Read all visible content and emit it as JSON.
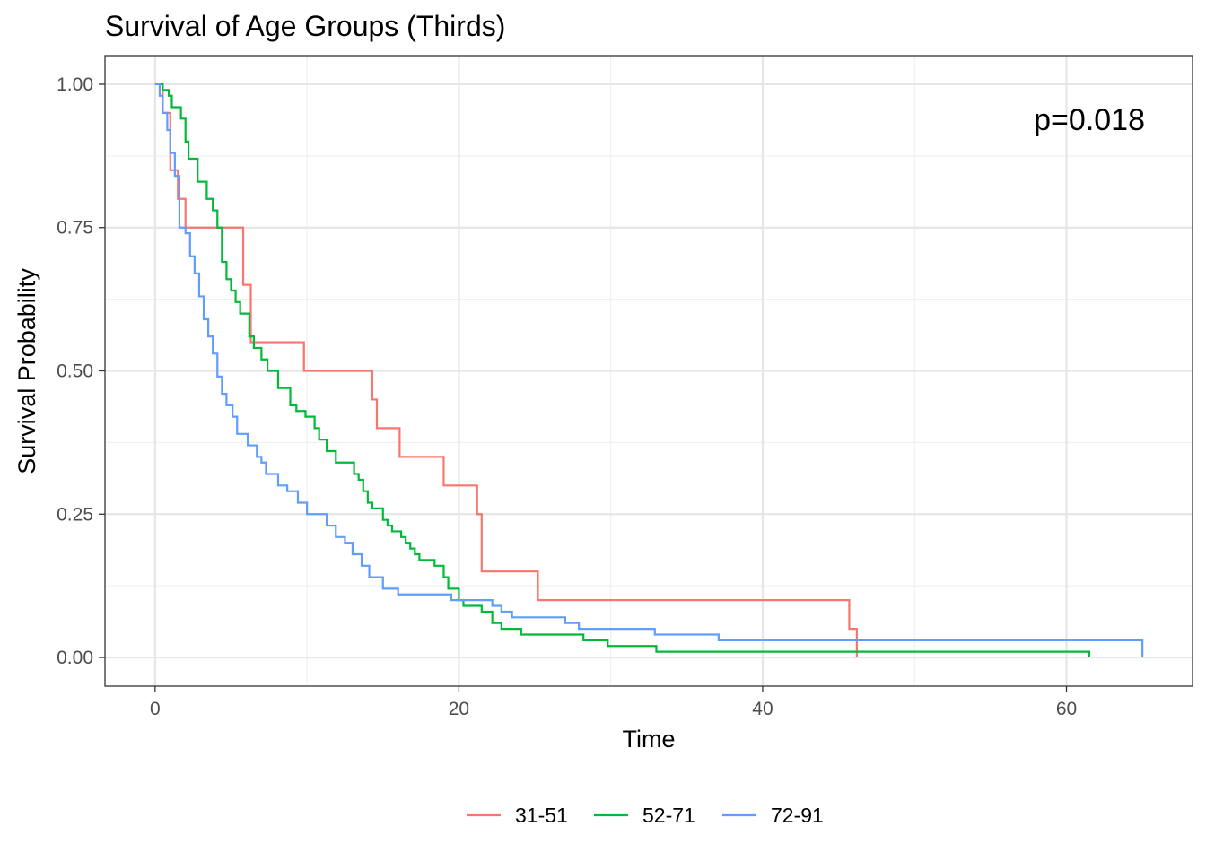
{
  "chart_data": {
    "type": "line",
    "subtype": "kaplan-meier-step",
    "title": "Survival of Age Groups (Thirds)",
    "xlabel": "Time",
    "ylabel": "Survival Probability",
    "xlim": [
      -3.3,
      68.3
    ],
    "ylim": [
      -0.05,
      1.05
    ],
    "x_ticks": [
      0,
      20,
      40,
      60
    ],
    "y_ticks": [
      0,
      0.25,
      0.5,
      0.75,
      1.0
    ],
    "x_tick_labels": [
      "0",
      "20",
      "40",
      "60"
    ],
    "y_tick_labels": [
      "0.00",
      "0.25",
      "0.50",
      "0.75",
      "1.00"
    ],
    "grid": true,
    "legend_position": "bottom",
    "annotation": "p=0.018",
    "series": [
      {
        "name": "31-51",
        "color": "#F8766D",
        "x": [
          0,
          0.5,
          1.0,
          1.5,
          2.0,
          5.8,
          6.3,
          9.8,
          14.3,
          14.6,
          16.1,
          19.0,
          21.2,
          21.5,
          25.2,
          45.7,
          46.2
        ],
        "y": [
          1.0,
          0.95,
          0.85,
          0.8,
          0.75,
          0.65,
          0.55,
          0.5,
          0.45,
          0.4,
          0.35,
          0.3,
          0.25,
          0.15,
          0.1,
          0.05,
          0.0
        ]
      },
      {
        "name": "52-71",
        "color": "#00BA38",
        "x": [
          0,
          0.5,
          0.9,
          1.1,
          1.7,
          2.0,
          2.2,
          2.8,
          3.4,
          3.8,
          4.1,
          4.4,
          4.7,
          5.0,
          5.3,
          5.6,
          6.2,
          6.5,
          7.0,
          7.4,
          8.1,
          8.9,
          9.3,
          9.9,
          10.5,
          10.8,
          11.3,
          11.9,
          13.1,
          13.4,
          13.7,
          14.0,
          14.3,
          15.0,
          15.3,
          15.6,
          16.2,
          16.5,
          16.8,
          17.1,
          17.4,
          18.4,
          19.0,
          19.3,
          20.0,
          20.3,
          21.5,
          22.2,
          22.8,
          24.1,
          28.2,
          29.8,
          33.0,
          61.5
        ],
        "y": [
          1.0,
          0.99,
          0.98,
          0.96,
          0.94,
          0.9,
          0.87,
          0.83,
          0.8,
          0.78,
          0.75,
          0.69,
          0.66,
          0.64,
          0.62,
          0.6,
          0.56,
          0.54,
          0.52,
          0.5,
          0.47,
          0.44,
          0.43,
          0.42,
          0.4,
          0.38,
          0.36,
          0.34,
          0.32,
          0.31,
          0.29,
          0.27,
          0.26,
          0.24,
          0.23,
          0.22,
          0.21,
          0.2,
          0.19,
          0.18,
          0.17,
          0.16,
          0.14,
          0.12,
          0.1,
          0.09,
          0.08,
          0.06,
          0.05,
          0.04,
          0.03,
          0.02,
          0.01,
          0.0
        ]
      },
      {
        "name": "72-91",
        "color": "#619CFF",
        "x": [
          0,
          0.3,
          0.5,
          0.8,
          1.0,
          1.3,
          1.6,
          2.0,
          2.3,
          2.6,
          2.9,
          3.2,
          3.5,
          3.8,
          4.1,
          4.4,
          4.7,
          5.1,
          5.4,
          6.1,
          6.7,
          7.0,
          7.3,
          8.1,
          8.7,
          9.4,
          10.0,
          11.3,
          11.9,
          12.5,
          13.0,
          13.6,
          14.1,
          15.0,
          16.0,
          19.5,
          22.2,
          22.8,
          23.5,
          27.0,
          27.9,
          32.9,
          37.1,
          65.0
        ],
        "y": [
          1.0,
          0.98,
          0.95,
          0.92,
          0.88,
          0.84,
          0.75,
          0.74,
          0.7,
          0.67,
          0.63,
          0.59,
          0.56,
          0.53,
          0.49,
          0.46,
          0.44,
          0.42,
          0.39,
          0.37,
          0.35,
          0.34,
          0.32,
          0.3,
          0.29,
          0.27,
          0.25,
          0.23,
          0.21,
          0.2,
          0.18,
          0.16,
          0.14,
          0.12,
          0.11,
          0.1,
          0.09,
          0.08,
          0.07,
          0.06,
          0.05,
          0.04,
          0.03,
          0.0
        ]
      }
    ]
  }
}
